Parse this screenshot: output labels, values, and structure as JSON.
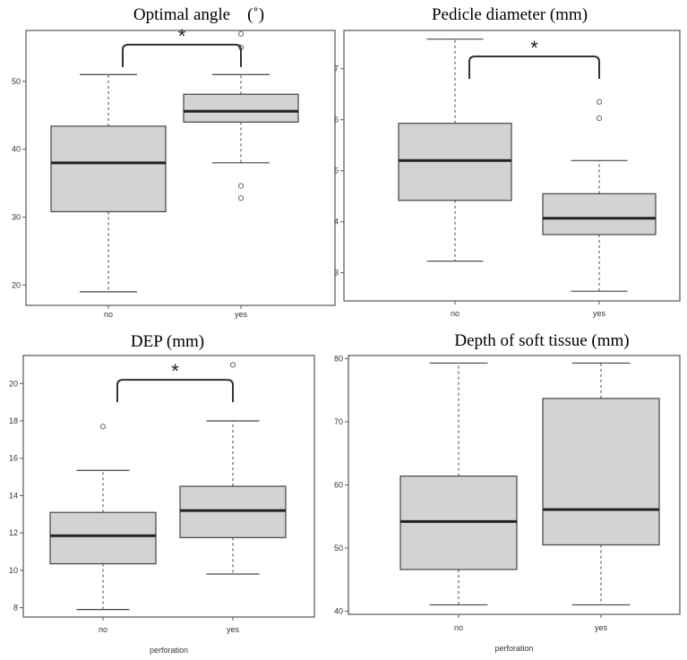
{
  "chart_data": [
    {
      "type": "box",
      "title": "Optimal angle　(˚)",
      "categories": [
        "no",
        "yes"
      ],
      "xlabel": "",
      "ylim": [
        17,
        57.5
      ],
      "yticks": [
        20,
        30,
        40,
        50
      ],
      "boxes": [
        {
          "category": "no",
          "whisker_low": 19.0,
          "q1": 30.8,
          "median": 38.0,
          "q3": 43.4,
          "whisker_high": 51.0,
          "outliers": []
        },
        {
          "category": "yes",
          "whisker_low": 38.0,
          "q1": 44.0,
          "median": 45.6,
          "q3": 48.1,
          "whisker_high": 51.0,
          "outliers": [
            32.8,
            34.6,
            55.0,
            57.0
          ]
        }
      ],
      "significance": {
        "label": "*",
        "from": "no",
        "to": "yes",
        "y": 55.4
      }
    },
    {
      "type": "box",
      "title": "Pedicle diameter  (mm)",
      "categories": [
        "no",
        "yes"
      ],
      "xlabel": "",
      "ylim": [
        2.45,
        7.75
      ],
      "yticks": [
        3,
        4,
        5,
        6,
        7
      ],
      "boxes": [
        {
          "category": "no",
          "whisker_low": 3.23,
          "q1": 4.42,
          "median": 5.2,
          "q3": 5.93,
          "whisker_high": 7.58,
          "outliers": []
        },
        {
          "category": "yes",
          "whisker_low": 2.64,
          "q1": 3.75,
          "median": 4.07,
          "q3": 4.55,
          "whisker_high": 5.2,
          "outliers": [
            6.03,
            6.35
          ]
        }
      ],
      "significance": {
        "label": "*",
        "from": "no",
        "to": "yes",
        "y": 7.24
      }
    },
    {
      "type": "box",
      "title": "DEP  (mm)",
      "categories": [
        "no",
        "yes"
      ],
      "xlabel": "perforation",
      "ylim": [
        7.5,
        21.5
      ],
      "yticks": [
        8,
        10,
        12,
        14,
        16,
        18,
        20
      ],
      "boxes": [
        {
          "category": "no",
          "whisker_low": 7.9,
          "q1": 10.35,
          "median": 11.85,
          "q3": 13.1,
          "whisker_high": 15.35,
          "outliers": [
            17.7
          ]
        },
        {
          "category": "yes",
          "whisker_low": 9.8,
          "q1": 11.75,
          "median": 13.2,
          "q3": 14.5,
          "whisker_high": 18.0,
          "outliers": [
            21.0
          ]
        }
      ],
      "significance": {
        "label": "*",
        "from": "no",
        "to": "yes",
        "y": 20.2
      }
    },
    {
      "type": "box",
      "title": "Depth of soft tissue  (mm)",
      "categories": [
        "no",
        "yes"
      ],
      "xlabel": "perforation",
      "ylim": [
        39.5,
        80.5
      ],
      "yticks": [
        40,
        50,
        60,
        70,
        80
      ],
      "boxes": [
        {
          "category": "no",
          "whisker_low": 41.0,
          "q1": 46.6,
          "median": 54.2,
          "q3": 61.4,
          "whisker_high": 79.3,
          "outliers": []
        },
        {
          "category": "yes",
          "whisker_low": 41.0,
          "q1": 50.5,
          "median": 56.1,
          "q3": 73.7,
          "whisker_high": 79.3,
          "outliers": []
        }
      ],
      "significance": null
    }
  ]
}
